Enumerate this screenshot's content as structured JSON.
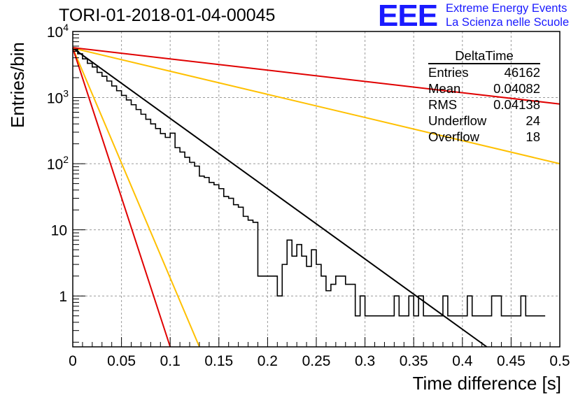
{
  "title": "TORI-01-2018-01-04-00045",
  "logo": {
    "mark": "EEE",
    "line1": "Extreme Energy Events",
    "line2": "La Scienza nelle Scuole",
    "color": "#1a1aff"
  },
  "stats": {
    "name": "DeltaTime",
    "rows": [
      {
        "label": "Entries",
        "value": "46162"
      },
      {
        "label": "Mean",
        "value": "0.04082"
      },
      {
        "label": "RMS",
        "value": "0.04138"
      },
      {
        "label": "Underflow",
        "value": "24"
      },
      {
        "label": "Overflow",
        "value": "18"
      }
    ]
  },
  "chart_data": {
    "type": "line",
    "title": "TORI-01-2018-01-04-00045",
    "xlabel": "Time difference [s]",
    "ylabel": "Entries/bin",
    "xlim": [
      0,
      0.5
    ],
    "ylim": [
      0.17,
      10000
    ],
    "yscale": "log",
    "grid": true,
    "xticks": [
      "0",
      "0.05",
      "0.1",
      "0.15",
      "0.2",
      "0.25",
      "0.3",
      "0.35",
      "0.4",
      "0.45",
      "0.5"
    ],
    "yticks": [
      {
        "value": 1,
        "label": "1"
      },
      {
        "value": 10,
        "label": "10"
      },
      {
        "value": 100,
        "label": "10",
        "exp": "2"
      },
      {
        "value": 1000,
        "label": "10",
        "exp": "3"
      },
      {
        "value": 10000,
        "label": "10",
        "exp": "4"
      }
    ],
    "histogram": {
      "name": "DeltaTime",
      "color": "#000000",
      "bin_width": 0.005,
      "values": [
        5350,
        4600,
        3850,
        3300,
        2900,
        2400,
        2100,
        1780,
        1500,
        1270,
        1080,
        920,
        780,
        660,
        560,
        470,
        400,
        340,
        285,
        250,
        290,
        175,
        150,
        125,
        105,
        92,
        65,
        62,
        52,
        48,
        42,
        32,
        30,
        24,
        22,
        16,
        14,
        13,
        12,
        12,
        9,
        9,
        7,
        5,
        7,
        4,
        6,
        4,
        2.8,
        5,
        3,
        2,
        4,
        2,
        3,
        2,
        1.5,
        1.5,
        1,
        1,
        1,
        0.5,
        0.5,
        0.5,
        0.5,
        0.5,
        0.5,
        0.5,
        0.5,
        0.5,
        0.5,
        0.5,
        0.5,
        0.5,
        0.5,
        0.5,
        0.5,
        0.5,
        0.5,
        0.5,
        0.5,
        0.5,
        0.5,
        0.5,
        0.5,
        0.5,
        0.5,
        0.5,
        0.5,
        0.5,
        0.5,
        0.5,
        0.5,
        0.5,
        0.5,
        0.5,
        0.5
      ],
      "overrides": [
        [
          38,
          2
        ],
        [
          39,
          2
        ],
        [
          40,
          2
        ],
        [
          41,
          2
        ],
        [
          42,
          1
        ],
        [
          43,
          3
        ],
        [
          50,
          3
        ],
        [
          51,
          2
        ],
        [
          52,
          1.2
        ],
        [
          53,
          1.5
        ],
        [
          54,
          2
        ],
        [
          58,
          0.5
        ],
        [
          59,
          1
        ],
        [
          60,
          0.5
        ],
        [
          61,
          0.5
        ],
        [
          62,
          0.5
        ],
        [
          66,
          1
        ],
        [
          67,
          0.5
        ],
        [
          69,
          1
        ],
        [
          70,
          0.5
        ],
        [
          71,
          1
        ],
        [
          75,
          0.5
        ],
        [
          76,
          1
        ],
        [
          77,
          0.5
        ],
        [
          78,
          0.5
        ],
        [
          79,
          0.5
        ],
        [
          80,
          0.5
        ],
        [
          81,
          1
        ],
        [
          82,
          0.5
        ],
        [
          83,
          0.5
        ],
        [
          84,
          0.5
        ],
        [
          85,
          0.5
        ],
        [
          86,
          1
        ],
        [
          87,
          1
        ],
        [
          88,
          0.5
        ],
        [
          89,
          0.5
        ],
        [
          90,
          0.5
        ],
        [
          91,
          0.5
        ],
        [
          92,
          1
        ],
        [
          93,
          0.5
        ],
        [
          94,
          0.5
        ],
        [
          95,
          0.5
        ]
      ]
    },
    "fits": [
      {
        "color": "#000000",
        "x": [
          0,
          0.425
        ],
        "y": [
          5600,
          0.17
        ]
      },
      {
        "color": "#ffc000",
        "x": [
          0,
          0.5
        ],
        "y": [
          5600,
          100
        ]
      },
      {
        "color": "#e00000",
        "x": [
          0,
          0.5
        ],
        "y": [
          5700,
          800
        ]
      },
      {
        "color": "#ffc000",
        "x": [
          0,
          0.13
        ],
        "y": [
          5600,
          0.17
        ]
      },
      {
        "color": "#e00000",
        "x": [
          0,
          0.1
        ],
        "y": [
          5600,
          0.17
        ]
      }
    ]
  }
}
